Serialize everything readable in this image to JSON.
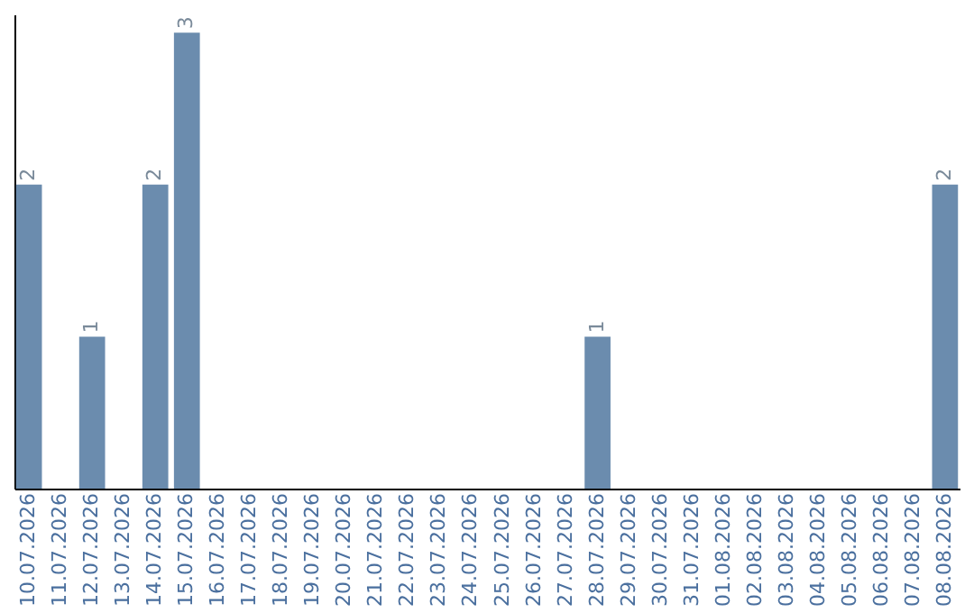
{
  "chart_data": {
    "type": "bar",
    "categories": [
      "10.07.2026",
      "11.07.2026",
      "12.07.2026",
      "13.07.2026",
      "14.07.2026",
      "15.07.2026",
      "16.07.2026",
      "17.07.2026",
      "18.07.2026",
      "19.07.2026",
      "20.07.2026",
      "21.07.2026",
      "22.07.2026",
      "23.07.2026",
      "24.07.2026",
      "25.07.2026",
      "26.07.2026",
      "27.07.2026",
      "28.07.2026",
      "29.07.2026",
      "30.07.2026",
      "31.07.2026",
      "01.08.2026",
      "02.08.2026",
      "03.08.2026",
      "04.08.2026",
      "05.08.2026",
      "06.08.2026",
      "07.08.2026",
      "08.08.2026"
    ],
    "values": [
      2,
      0,
      1,
      0,
      2,
      3,
      0,
      0,
      0,
      0,
      0,
      0,
      0,
      0,
      0,
      0,
      0,
      0,
      1,
      0,
      0,
      0,
      0,
      0,
      0,
      0,
      0,
      0,
      0,
      2
    ],
    "value_labels": [
      "2",
      null,
      "1",
      null,
      "2",
      "3",
      null,
      null,
      null,
      null,
      null,
      null,
      null,
      null,
      null,
      null,
      null,
      null,
      "1",
      null,
      null,
      null,
      null,
      null,
      null,
      null,
      null,
      null,
      null,
      "2"
    ],
    "color": "#6b8cae",
    "ylim": [
      0,
      3.12
    ],
    "tick_labels": "x",
    "grid": false
  }
}
